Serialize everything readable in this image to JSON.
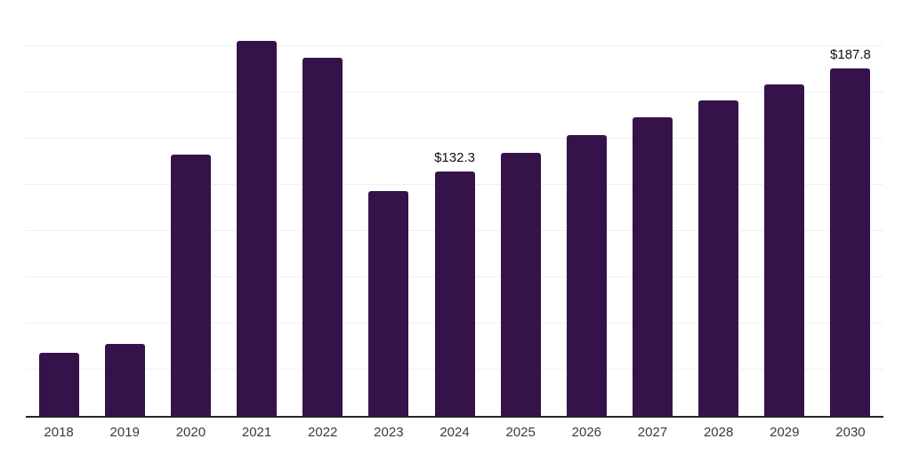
{
  "chart_data": {
    "type": "bar",
    "title": "",
    "xlabel": "",
    "ylabel": "",
    "categories": [
      "2018",
      "2019",
      "2020",
      "2021",
      "2022",
      "2023",
      "2024",
      "2025",
      "2026",
      "2027",
      "2028",
      "2029",
      "2030"
    ],
    "values": [
      34.2,
      39.0,
      141.5,
      202.9,
      193.6,
      121.7,
      132.3,
      142.3,
      151.7,
      161.6,
      170.5,
      179.2,
      187.8
    ],
    "data_labels": {
      "2024": "$132.3",
      "2030": "$187.8"
    },
    "ylim": [
      0,
      225
    ],
    "gridline_step": 25,
    "grid": true,
    "legend": false,
    "y_axis_tick_labels_visible": false,
    "colors": {
      "bar": "#35134a",
      "axis_line": "#262626",
      "gridline": "#f0f0f0",
      "tick_label": "#3a3a3a",
      "data_label": "#111111",
      "background": "#ffffff"
    }
  }
}
